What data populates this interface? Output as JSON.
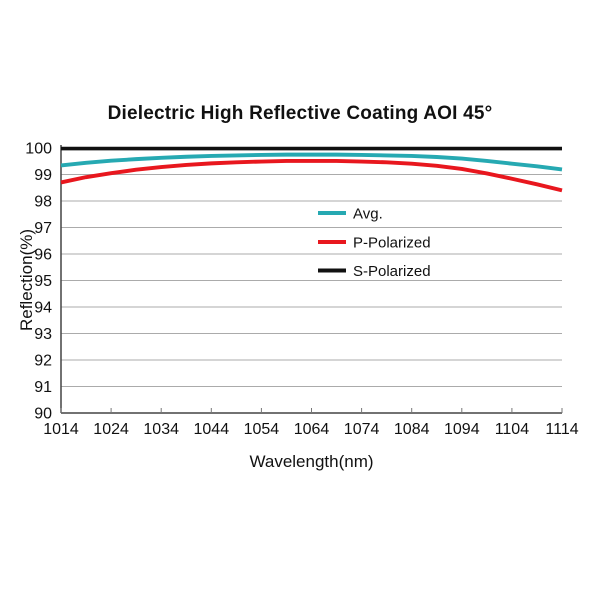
{
  "chart_data": {
    "type": "line",
    "title": "Dielectric High Reflective Coating AOI 45°",
    "xlabel": "Wavelength(nm)",
    "ylabel": "Reflection(%)",
    "xlim": [
      1014,
      1114
    ],
    "ylim": [
      90,
      100
    ],
    "x_ticks": [
      1014,
      1024,
      1034,
      1044,
      1054,
      1064,
      1074,
      1084,
      1094,
      1104,
      1114
    ],
    "y_ticks": [
      90,
      91,
      92,
      93,
      94,
      95,
      96,
      97,
      98,
      99,
      100
    ],
    "grid": "horizontal",
    "legend_position": "inside-center",
    "x": [
      1014,
      1019,
      1024,
      1029,
      1034,
      1039,
      1044,
      1049,
      1054,
      1059,
      1064,
      1069,
      1074,
      1079,
      1084,
      1089,
      1094,
      1099,
      1104,
      1109,
      1114
    ],
    "series": [
      {
        "name": "Avg.",
        "color": "#26A9B2",
        "values": [
          99.34,
          99.44,
          99.52,
          99.58,
          99.63,
          99.67,
          99.7,
          99.72,
          99.74,
          99.75,
          99.75,
          99.75,
          99.74,
          99.72,
          99.7,
          99.66,
          99.6,
          99.51,
          99.41,
          99.31,
          99.19
        ]
      },
      {
        "name": "P-Polarized",
        "color": "#E8171E",
        "values": [
          98.7,
          98.9,
          99.05,
          99.18,
          99.28,
          99.36,
          99.42,
          99.46,
          99.49,
          99.51,
          99.51,
          99.51,
          99.49,
          99.46,
          99.41,
          99.33,
          99.21,
          99.04,
          98.84,
          98.63,
          98.4
        ]
      },
      {
        "name": "S-Polarized",
        "color": "#111111",
        "values": [
          99.98,
          99.98,
          99.98,
          99.98,
          99.98,
          99.98,
          99.98,
          99.98,
          99.98,
          99.98,
          99.98,
          99.98,
          99.98,
          99.98,
          99.98,
          99.98,
          99.98,
          99.98,
          99.98,
          99.98,
          99.98
        ]
      }
    ],
    "colors": {
      "grid": "#ABABAB",
      "axis": "#444444",
      "tick": "#777777"
    }
  }
}
